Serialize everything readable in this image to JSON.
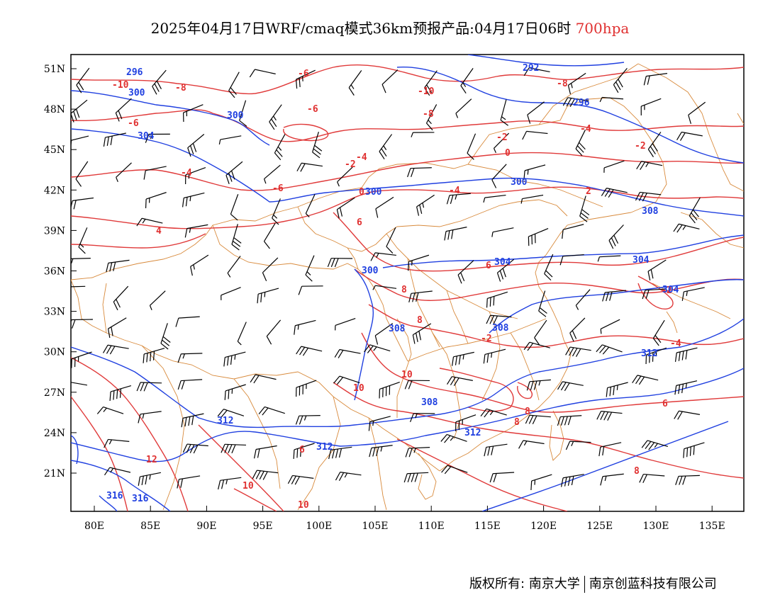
{
  "title": {
    "main": "2025年04月17日WRF/cmaq模式36km预报产品:04月17日06时",
    "level": "700hpa"
  },
  "axes": {
    "lon_labels": [
      "80E",
      "85E",
      "90E",
      "95E",
      "100E",
      "105E",
      "110E",
      "115E",
      "120E",
      "125E",
      "130E",
      "135E"
    ],
    "lat_labels": [
      "51N",
      "48N",
      "45N",
      "42N",
      "39N",
      "36N",
      "33N",
      "30N",
      "27N",
      "24N",
      "21N"
    ]
  },
  "footer": {
    "copyright": "版权所有: 南京大学",
    "company": "南京创蓝科技有限公司"
  },
  "colors": {
    "temperature": "#e03030",
    "geopotential": "#2040e0",
    "borders": "#d88a3c",
    "wind_barbs": "#000000"
  },
  "contour_labels": {
    "temperature": [
      "-10",
      "-8",
      "-6",
      "-8",
      "-10",
      "-8",
      "-6",
      "-6",
      "-4",
      "-2",
      "0",
      "-2",
      "-4",
      "-6",
      "-4",
      "-4",
      "-2",
      "0",
      "2",
      "6",
      "4",
      "6",
      "8",
      "8",
      "10",
      "10",
      "6",
      "8",
      "8",
      "12",
      "10",
      "10",
      "8",
      "6",
      "-2",
      "-4",
      "-2"
    ],
    "geopotential": [
      "296",
      "300",
      "300",
      "304",
      "292",
      "296",
      "300",
      "300",
      "300",
      "304",
      "304",
      "308",
      "304",
      "308",
      "312",
      "308",
      "312",
      "312",
      "312",
      "316",
      "316",
      "308"
    ]
  }
}
